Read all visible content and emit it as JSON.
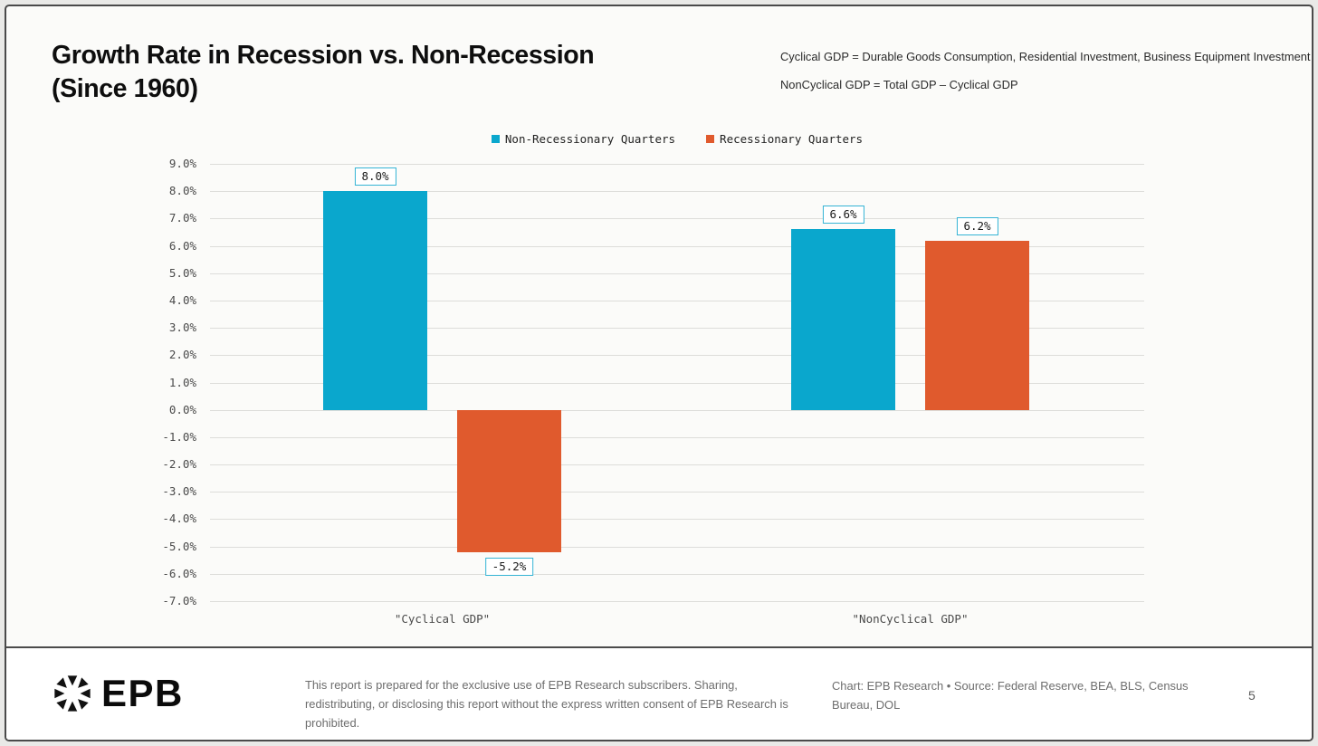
{
  "slide": {
    "title_line1": "Growth Rate in Recession vs. Non-Recession",
    "title_line2": "(Since 1960)",
    "note1": "Cyclical GDP = Durable Goods Consumption, Residential Investment, Business Equipment Investment",
    "note2": "NonCyclical GDP = Total GDP – Cyclical GDP",
    "page_number": "5"
  },
  "chart_data": {
    "type": "bar",
    "title": "Growth Rate in Recession vs. Non-Recession (Since 1960)",
    "categories": [
      "\"Cyclical GDP\"",
      "\"NonCyclical GDP\""
    ],
    "series": [
      {
        "name": "Non-Recessionary Quarters",
        "color": "#0AA7CD",
        "values": [
          8.0,
          6.6
        ]
      },
      {
        "name": "Recessionary Quarters",
        "color": "#E05A2D",
        "values": [
          -5.2,
          6.2
        ]
      }
    ],
    "value_labels": [
      [
        "8.0%",
        "6.6%"
      ],
      [
        "-5.2%",
        "6.2%"
      ]
    ],
    "xlabel": "",
    "ylabel": "",
    "ylim": [
      -7.0,
      9.0
    ],
    "ytick_step": 1.0,
    "ytick_suffix": "%",
    "grid": true,
    "legend_position": "top-center",
    "label_box_border": "#35B4D5",
    "label_box_bg": "#FFFFFF"
  },
  "footer": {
    "logo_text": "EPB",
    "disclaimer": "This report is prepared for the exclusive use of EPB Research subscribers. Sharing, redistributing, or disclosing this report without the express written consent of EPB Research is prohibited.",
    "credit": "Chart: EPB Research • Source: Federal Reserve, BEA, BLS, Census Bureau, DOL"
  }
}
